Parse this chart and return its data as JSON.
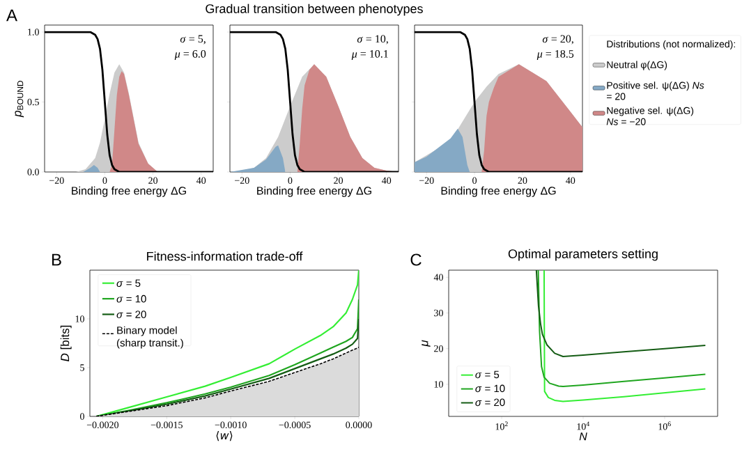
{
  "chart_data": [
    {
      "type": "area",
      "annotations": [
        "A",
        "*σ* = 5,",
        "*μ* = 6.0"
      ],
      "xlabel": "Binding free energy ΔG",
      "ylabel": "*p*$_{BOUND}$",
      "xlim": [
        -25,
        45
      ],
      "ylim": [
        0,
        1.05
      ],
      "xticks": [
        {
          "value": -20,
          "label": "−20"
        },
        0,
        20,
        40
      ],
      "yticks": [
        {
          "value": 0,
          "label": "0.0"
        },
        0.5,
        {
          "value": 1,
          "label": "1.0"
        }
      ],
      "series": [
        {
          "color": "#cccccc",
          "x": [
            -12,
            -8,
            -4,
            -2,
            0,
            2,
            4,
            6,
            8,
            10,
            14,
            18,
            22
          ],
          "values": [
            0,
            0.02,
            0.1,
            0.21,
            0.38,
            0.56,
            0.71,
            0.77,
            0.71,
            0.56,
            0.21,
            0.06,
            0
          ]
        },
        {
          "color": "#85a9c5",
          "x": [
            -9,
            -6,
            -4.5,
            -3,
            -2
          ],
          "values": [
            0,
            0.03,
            0.05,
            0.03,
            0
          ]
        },
        {
          "color": "#d08888",
          "x": [
            2,
            3,
            4,
            5,
            6,
            7,
            8,
            10,
            14,
            18,
            22
          ],
          "values": [
            0,
            0.05,
            0.3,
            0.55,
            0.68,
            0.72,
            0.7,
            0.55,
            0.2,
            0.06,
            0
          ]
        },
        {
          "type": "line",
          "color": "#000000",
          "x": [
            -25,
            -6,
            -4,
            -3,
            -2,
            -1,
            0,
            1,
            2,
            3,
            4,
            6,
            45
          ],
          "values": [
            1,
            1,
            0.98,
            0.95,
            0.88,
            0.73,
            0.5,
            0.27,
            0.12,
            0.05,
            0.02,
            0,
            0
          ]
        }
      ]
    },
    {
      "type": "area",
      "title": "Gradual transition between phenotypes",
      "annotations": [
        "*σ* = 10,",
        "*μ* = 10.1"
      ],
      "xlabel": "Binding free energy ΔG",
      "tick_labels": "x",
      "xlim": [
        -25,
        45
      ],
      "ylim": [
        0,
        1.05
      ],
      "xticks": [
        {
          "value": -20,
          "label": "−20"
        },
        0,
        20,
        40
      ],
      "yticks": [
        0,
        0.5,
        1
      ],
      "series": [
        {
          "color": "#cccccc",
          "x": [
            -25,
            -20,
            -15,
            -10,
            -5,
            0,
            5,
            10,
            15,
            20,
            25,
            30,
            35,
            40,
            45
          ],
          "values": [
            0,
            0.01,
            0.03,
            0.1,
            0.25,
            0.47,
            0.68,
            0.77,
            0.68,
            0.47,
            0.25,
            0.1,
            0.03,
            0.01,
            0
          ]
        },
        {
          "color": "#85a9c5",
          "x": [
            -25,
            -15,
            -10,
            -6,
            -5,
            -3,
            -2
          ],
          "values": [
            0,
            0.03,
            0.09,
            0.18,
            0.19,
            0.1,
            0
          ]
        },
        {
          "color": "#d08888",
          "x": [
            3,
            4,
            5,
            6,
            8,
            10,
            15,
            20,
            25,
            30,
            35,
            40,
            45
          ],
          "values": [
            0,
            0.2,
            0.45,
            0.62,
            0.73,
            0.77,
            0.68,
            0.47,
            0.25,
            0.1,
            0.03,
            0.01,
            0
          ]
        },
        {
          "type": "line",
          "color": "#000000",
          "x": [
            -25,
            -6,
            -4,
            -3,
            -2,
            -1,
            0,
            1,
            2,
            3,
            4,
            6,
            45
          ],
          "values": [
            1,
            1,
            0.98,
            0.95,
            0.88,
            0.73,
            0.5,
            0.27,
            0.12,
            0.05,
            0.02,
            0,
            0
          ]
        }
      ]
    },
    {
      "type": "area",
      "annotations": [
        "*σ* = 20,",
        "*μ* = 18.5"
      ],
      "xlabel": "Binding free energy ΔG",
      "tick_labels": "x",
      "legend": "right",
      "legend_title": "Distributions (not normalized):",
      "xlim": [
        -25,
        45
      ],
      "ylim": [
        0,
        1.05
      ],
      "xticks": [
        {
          "value": -20,
          "label": "−20"
        },
        0,
        20,
        40
      ],
      "yticks": [
        0,
        0.5,
        1
      ],
      "series": [
        {
          "name": "Neutral φ(ΔG)",
          "color": "#cccccc",
          "x": [
            -25,
            -20,
            -10,
            0,
            5,
            10,
            18.5,
            30,
            40,
            45
          ],
          "values": [
            0.07,
            0.12,
            0.22,
            0.5,
            0.61,
            0.7,
            0.77,
            0.65,
            0.43,
            0.32
          ]
        },
        {
          "name": "Positive sel. ψ(ΔG) *Ns* = 20",
          "color": "#85a9c5",
          "x": [
            -25,
            -20,
            -10,
            -7,
            -5,
            -3,
            -2
          ],
          "values": [
            0.07,
            0.11,
            0.24,
            0.31,
            0.25,
            0.05,
            0
          ]
        },
        {
          "name": "Negative sel. ψ(ΔG) *Ns* = −20",
          "color": "#d08888",
          "x": [
            3,
            4,
            5,
            6,
            8,
            10,
            18.5,
            30,
            40,
            45
          ],
          "values": [
            0,
            0.15,
            0.4,
            0.5,
            0.6,
            0.68,
            0.77,
            0.65,
            0.43,
            0.32
          ]
        },
        {
          "type": "line",
          "color": "#000000",
          "x": [
            -25,
            -6,
            -4,
            -3,
            -2,
            -1,
            0,
            1,
            2,
            3,
            4,
            6,
            45
          ],
          "values": [
            1,
            1,
            0.98,
            0.95,
            0.88,
            0.73,
            0.5,
            0.27,
            0.12,
            0.05,
            0.02,
            0,
            0
          ]
        }
      ]
    },
    {
      "type": "line",
      "title": "Fitness-information trade-off",
      "annotations": [
        "B"
      ],
      "xlabel": "⟨*w*⟩",
      "ylabel": "*D* [bits]",
      "legend": "top left",
      "xlim": [
        -0.0021,
        0
      ],
      "ylim": [
        0,
        15
      ],
      "xticks": [
        {
          "value": -0.002,
          "label": "−0.0020"
        },
        {
          "value": -0.0015,
          "label": "−0.0015"
        },
        {
          "value": -0.001,
          "label": "−0.0010"
        },
        {
          "value": -0.0005,
          "label": "−0.0005"
        },
        {
          "value": 0,
          "label": "0.0000"
        }
      ],
      "yticks": [
        0,
        5,
        10
      ],
      "series": [
        {
          "name": "*σ* = 5",
          "color": "#33ee33",
          "x": [
            -0.00205,
            -0.0018,
            -0.0015,
            -0.0012,
            -0.001,
            -0.0007,
            -0.0005,
            -0.0003,
            -0.0002,
            -0.0001,
            -5e-05,
            -1e-05,
            0
          ],
          "values": [
            0,
            0.9,
            2.0,
            3.1,
            4.0,
            5.4,
            6.9,
            8.3,
            9.2,
            10.6,
            12.0,
            13.5,
            15
          ]
        },
        {
          "name": "*σ* = 10",
          "color": "#1fa51f",
          "x": [
            -0.00205,
            -0.0018,
            -0.0015,
            -0.0012,
            -0.001,
            -0.0007,
            -0.0005,
            -0.0003,
            -0.0002,
            -0.0001,
            -5e-05,
            -1e-05,
            0
          ],
          "values": [
            0,
            0.6,
            1.4,
            2.3,
            3.0,
            4.2,
            5.3,
            6.5,
            7.1,
            7.7,
            8.1,
            9,
            12
          ]
        },
        {
          "name": "*σ* = 20",
          "color": "#145c14",
          "x": [
            -0.00205,
            -0.0018,
            -0.0015,
            -0.0012,
            -0.001,
            -0.0007,
            -0.0005,
            -0.0003,
            -0.0002,
            -0.0001,
            -5e-05,
            -1e-05,
            0
          ],
          "values": [
            0,
            0.55,
            1.25,
            2.1,
            2.8,
            3.9,
            4.9,
            5.9,
            6.4,
            7.0,
            7.4,
            8.0,
            10
          ]
        },
        {
          "name": "Binary model (sharp transit.)",
          "color": "#000000",
          "line_style": "dashed",
          "x": [
            -0.00205,
            -0.0018,
            -0.0015,
            -0.0012,
            -0.001,
            -0.0007,
            -0.0005,
            -0.0003,
            -0.0002,
            -0.0001,
            -5e-05,
            -1e-05,
            0
          ],
          "values": [
            0,
            0.5,
            1.1,
            1.9,
            2.6,
            3.6,
            4.5,
            5.4,
            5.9,
            6.5,
            6.8,
            7.0,
            7.1
          ],
          "lower": [
            0,
            0,
            0,
            0,
            0,
            0,
            0,
            0,
            0,
            0,
            0,
            0,
            0
          ],
          "upper": [
            0,
            0.5,
            1.1,
            1.9,
            2.6,
            3.6,
            4.5,
            5.4,
            5.9,
            6.5,
            6.8,
            7.0,
            7.1
          ]
        }
      ]
    },
    {
      "type": "line",
      "title": "Optimal parameters setting",
      "annotations": [
        "C"
      ],
      "xlabel": "*N*",
      "ylabel": "*μ*",
      "log": "x",
      "legend": "bottom left",
      "xlim": [
        5,
        20000000
      ],
      "ylim": [
        1,
        42
      ],
      "xticks": [
        {
          "value": 100,
          "label": "10$^{2}$"
        },
        {
          "value": 10000,
          "label": "10$^{4}$"
        },
        {
          "value": 1000000,
          "label": "10$^{6}$"
        }
      ],
      "yticks": [
        10,
        20,
        30,
        40
      ],
      "series": [
        {
          "name": "*σ* = 5",
          "color": "#33ee33",
          "x": [
            1100,
            1130,
            1400,
            2000,
            3200,
            10000,
            100000,
            1000000,
            10000000
          ],
          "values": [
            42,
            8,
            6.3,
            5.5,
            5.2,
            5.6,
            6.5,
            7.6,
            8.7
          ]
        },
        {
          "name": "*σ* = 10",
          "color": "#1fa51f",
          "x": [
            790,
            850,
            950,
            1100,
            1500,
            2500,
            3200,
            10000,
            100000,
            1000000,
            10000000
          ],
          "values": [
            42,
            25,
            15,
            12,
            10.3,
            9.5,
            9.4,
            9.8,
            10.8,
            11.8,
            12.8
          ]
        },
        {
          "name": "*σ* = 20",
          "color": "#145c14",
          "x": [
            710,
            800,
            900,
            1000,
            1300,
            2000,
            3200,
            10000,
            100000,
            1000000,
            10000000
          ],
          "values": [
            42,
            32,
            27,
            24,
            21,
            18.7,
            17.8,
            18.2,
            19.1,
            20,
            20.9
          ]
        }
      ]
    }
  ]
}
